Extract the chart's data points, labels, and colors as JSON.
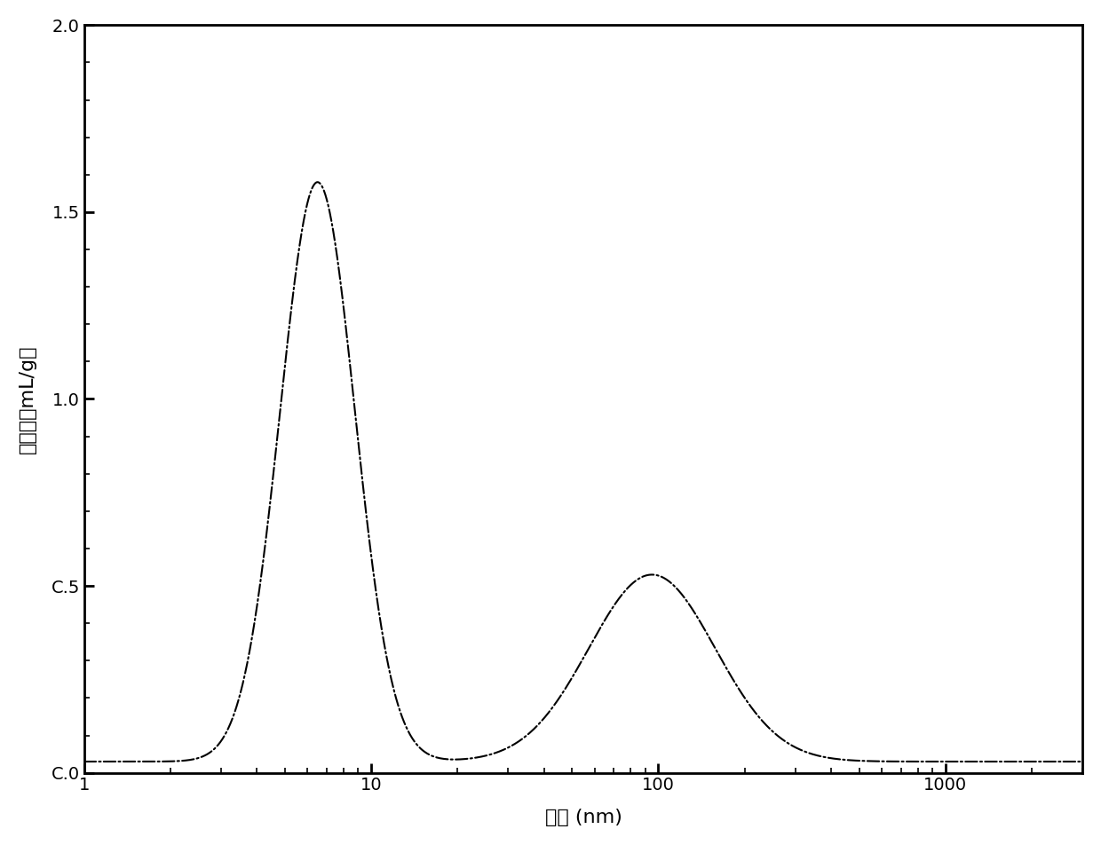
{
  "xlabel": "孔径 (nm)",
  "ylabel": "压汞量（mL/g）",
  "xlim_log": [
    1,
    3000
  ],
  "ylim": [
    0.0,
    2.0
  ],
  "yticks": [
    0.0,
    0.5,
    1.0,
    1.5,
    2.0
  ],
  "ytick_labels": [
    "C.0",
    "C.5",
    "1.0",
    "1.5",
    "2.0"
  ],
  "line_color": "#000000",
  "line_style": "-.",
  "line_width": 1.5,
  "background_color": "#ffffff",
  "peak1_x": 6.5,
  "peak1_y": 1.55,
  "peak1_sigma": 0.13,
  "peak2_x": 95.0,
  "peak2_y": 0.5,
  "peak2_sigma": 0.22,
  "baseline": 0.03,
  "valley_floor": 0.15
}
